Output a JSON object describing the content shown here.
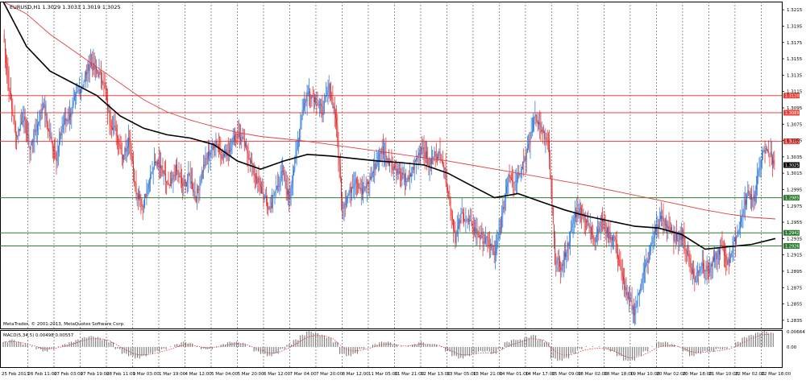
{
  "chart_data": {
    "type": "candlestick",
    "symbol_header": "EURUSD,H1  1.3029 1.3033 1.3019 1.3025",
    "copyright": "MetaTrader, © 2001-2013, MetaQuotes Software Corp.",
    "ylim": [
      1.2825,
      1.3225
    ],
    "y_ticks": [
      "1.3215",
      "1.3195",
      "1.3175",
      "1.3155",
      "1.3135",
      "1.3115",
      "1.3095",
      "1.3075",
      "1.3055",
      "1.3035",
      "1.3015",
      "1.2995",
      "1.2975",
      "1.2955",
      "1.2935",
      "1.2915",
      "1.2895",
      "1.2875",
      "1.2855",
      "1.2835"
    ],
    "x_ticks": [
      "25 Feb 2013",
      "26 Feb 11:00",
      "27 Feb 03:00",
      "27 Feb 19:00",
      "28 Feb 11:00",
      "1 Mar 03:00",
      "1 Mar 19:00",
      "4 Mar 12:00",
      "5 Mar 04:00",
      "5 Mar 20:00",
      "6 Mar 12:00",
      "7 Mar 04:00",
      "7 Mar 20:00",
      "8 Mar 12:00",
      "11 Mar 05:00",
      "11 Mar 21:00",
      "12 Mar 13:00",
      "13 Mar 05:00",
      "13 Mar 21:00",
      "14 Mar 01:00",
      "14 Mar 17:00",
      "15 Mar 09:00",
      "18 Mar 02:00",
      "18 Mar 18:00",
      "19 Mar 10:00",
      "20 Mar 02:00",
      "20 Mar 18:00",
      "21 Mar 10:00",
      "22 Mar 02:00",
      "22 Mar 18:00"
    ],
    "horizontal_levels": [
      {
        "label": "1.3110",
        "value": 1.311,
        "color": "#e8413a"
      },
      {
        "label": "1.3089",
        "value": 1.3089,
        "color": "#e8413a"
      },
      {
        "label": "1.3054",
        "value": 1.3054,
        "color": "#e8413a"
      },
      {
        "label": "1.3025",
        "value": 1.3025,
        "color": "#000000"
      },
      {
        "label": "1.2985",
        "value": 1.2985,
        "color": "#2e7d32"
      },
      {
        "label": "1.2942",
        "value": 1.2942,
        "color": "#2e7d32"
      },
      {
        "label": "1.2926",
        "value": 1.2926,
        "color": "#2e7d32"
      }
    ],
    "price_path": [
      1.3185,
      1.311,
      1.306,
      1.3085,
      1.3045,
      1.307,
      1.31,
      1.306,
      1.3035,
      1.3075,
      1.3085,
      1.311,
      1.3125,
      1.315,
      1.314,
      1.313,
      1.308,
      1.3065,
      1.3035,
      1.306,
      1.299,
      1.2975,
      1.301,
      1.303,
      1.3015,
      1.2995,
      1.302,
      1.3,
      1.301,
      1.2985,
      1.302,
      1.304,
      1.3055,
      1.3035,
      1.3045,
      1.3065,
      1.3055,
      1.3035,
      1.301,
      1.299,
      1.297,
      1.2995,
      1.3015,
      1.2985,
      1.3035,
      1.3095,
      1.3115,
      1.3105,
      1.309,
      1.312,
      1.3085,
      1.2975,
      1.299,
      1.301,
      1.299,
      1.3005,
      1.3025,
      1.3045,
      1.303,
      1.302,
      1.301,
      1.3005,
      1.303,
      1.305,
      1.3025,
      1.304,
      1.3035,
      1.299,
      1.2935,
      1.2965,
      1.2955,
      1.2945,
      1.2935,
      1.293,
      1.2915,
      1.296,
      1.3015,
      1.3005,
      1.3025,
      1.3045,
      1.309,
      1.3065,
      1.305,
      1.291,
      1.29,
      1.293,
      1.2965,
      1.297,
      1.295,
      1.2935,
      1.296,
      1.294,
      1.2935,
      1.289,
      1.286,
      1.2845,
      1.2885,
      1.291,
      1.2945,
      1.296,
      1.295,
      1.2935,
      1.294,
      1.2915,
      1.2885,
      1.2905,
      1.2895,
      1.291,
      1.2925,
      1.2905,
      1.293,
      1.296,
      1.299,
      1.2985,
      1.3035,
      1.3045,
      1.3025
    ],
    "slow_ma": [
      1.3225,
      1.321,
      1.3185,
      1.3165,
      1.3145,
      1.3125,
      1.3105,
      1.309,
      1.308,
      1.3072,
      1.3065,
      1.306,
      1.3057,
      1.3054,
      1.305,
      1.3046,
      1.3042,
      1.3038,
      1.3034,
      1.303,
      1.3025,
      1.302,
      1.3015,
      1.301,
      1.3005,
      1.3,
      1.2994,
      1.2988,
      1.2982,
      1.2976,
      1.297,
      1.2965,
      1.2961,
      1.2959
    ],
    "fast_ma": [
      1.3225,
      1.317,
      1.314,
      1.3125,
      1.311,
      1.3085,
      1.307,
      1.3062,
      1.3058,
      1.305,
      1.303,
      1.302,
      1.303,
      1.3038,
      1.3036,
      1.3033,
      1.303,
      1.3028,
      1.3025,
      1.3015,
      1.3,
      1.2985,
      1.299,
      1.298,
      1.297,
      1.2962,
      1.2956,
      1.295,
      1.2948,
      1.294,
      1.2922,
      1.2925,
      1.2928,
      1.2935
    ],
    "macd": {
      "label": "MACD(5,34,5) 0.00498 0.00557",
      "y_ticks": [
        "0.00664",
        "0.00"
      ],
      "range": [
        -0.008,
        0.0066
      ],
      "values": [
        0.002,
        0.003,
        0.002,
        0.001,
        0.0,
        -0.001,
        -0.002,
        -0.001,
        0.0,
        0.001,
        0.002,
        0.003,
        0.004,
        0.0045,
        0.004,
        0.003,
        0.002,
        -0.001,
        -0.003,
        -0.004,
        -0.005,
        -0.004,
        -0.003,
        -0.002,
        -0.001,
        0.0,
        0.001,
        0.002,
        0.0015,
        0.0,
        -0.001,
        -0.001,
        0.0,
        0.001,
        0.002,
        0.002,
        0.0015,
        0.0,
        -0.002,
        -0.003,
        -0.004,
        -0.003,
        -0.001,
        0.001,
        0.003,
        0.005,
        0.0066,
        0.006,
        0.005,
        0.004,
        0.002,
        -0.003,
        -0.004,
        -0.003,
        -0.001,
        0.0,
        0.001,
        0.002,
        0.002,
        0.001,
        0.0,
        0.0,
        0.001,
        0.002,
        0.001,
        0.001,
        0.0,
        -0.002,
        -0.004,
        -0.005,
        -0.004,
        -0.003,
        -0.002,
        -0.002,
        -0.003,
        -0.001,
        0.002,
        0.003,
        0.003,
        0.004,
        0.005,
        0.003,
        0.002,
        -0.005,
        -0.006,
        -0.005,
        -0.003,
        -0.001,
        0.0,
        0.0,
        0.0,
        -0.001,
        -0.002,
        -0.004,
        -0.006,
        -0.006,
        -0.004,
        -0.002,
        0.0,
        0.002,
        0.002,
        0.001,
        0.0,
        -0.002,
        -0.004,
        -0.003,
        -0.002,
        -0.002,
        -0.001,
        -0.001,
        0.0,
        0.002,
        0.004,
        0.005,
        0.006,
        0.0066,
        0.006
      ]
    },
    "grid": true,
    "colors": {
      "up": "#1e6fd9",
      "down": "#e02020",
      "slow_ma": "#e04040",
      "fast_ma": "#000000",
      "macd_bar": "#7a7a7a",
      "macd_signal": "#e02020"
    }
  }
}
